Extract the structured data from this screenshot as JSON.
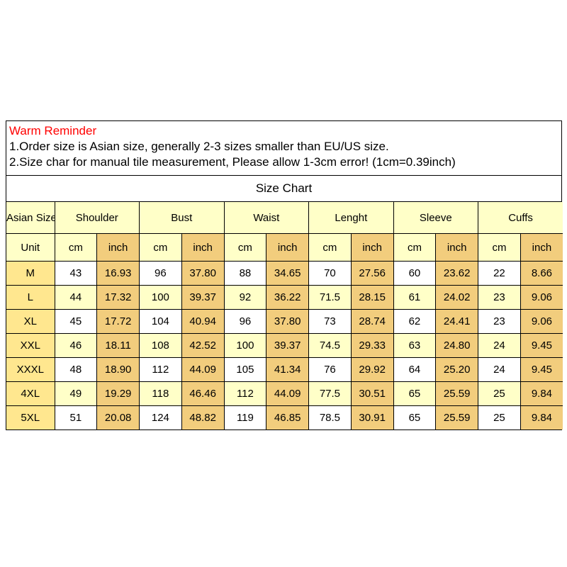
{
  "reminder": {
    "title": "Warm Reminder",
    "line1": "1.Order size is Asian size, generally 2-3 sizes smaller than EU/US size.",
    "line2": "2.Size char for manual tile measurement, Please allow 1-3cm error!  (1cm=0.39inch)"
  },
  "chart_data": {
    "type": "table",
    "title": "Size Chart",
    "first_column_header": "Asian Size",
    "unit_row_label": "Unit",
    "groups": [
      "Shoulder",
      "Bust",
      "Waist",
      "Lenght",
      "Sleeve",
      "Cuffs"
    ],
    "unit_labels": [
      "cm",
      "inch"
    ],
    "rows": [
      {
        "size": "M",
        "values": [
          "43",
          "16.93",
          "96",
          "37.80",
          "88",
          "34.65",
          "70",
          "27.56",
          "60",
          "23.62",
          "22",
          "8.66"
        ]
      },
      {
        "size": "L",
        "values": [
          "44",
          "17.32",
          "100",
          "39.37",
          "92",
          "36.22",
          "71.5",
          "28.15",
          "61",
          "24.02",
          "23",
          "9.06"
        ]
      },
      {
        "size": "XL",
        "values": [
          "45",
          "17.72",
          "104",
          "40.94",
          "96",
          "37.80",
          "73",
          "28.74",
          "62",
          "24.41",
          "23",
          "9.06"
        ]
      },
      {
        "size": "XXL",
        "values": [
          "46",
          "18.11",
          "108",
          "42.52",
          "100",
          "39.37",
          "74.5",
          "29.33",
          "63",
          "24.80",
          "24",
          "9.45"
        ]
      },
      {
        "size": "XXXL",
        "values": [
          "48",
          "18.90",
          "112",
          "44.09",
          "105",
          "41.34",
          "76",
          "29.92",
          "64",
          "25.20",
          "24",
          "9.45"
        ]
      },
      {
        "size": "4XL",
        "values": [
          "49",
          "19.29",
          "118",
          "46.46",
          "112",
          "44.09",
          "77.5",
          "30.51",
          "65",
          "25.59",
          "25",
          "9.84"
        ]
      },
      {
        "size": "5XL",
        "values": [
          "51",
          "20.08",
          "124",
          "48.82",
          "119",
          "46.85",
          "78.5",
          "30.91",
          "65",
          "25.59",
          "25",
          "9.84"
        ]
      }
    ]
  },
  "colors": {
    "reminder_title": "#ff0000",
    "header_bg": "#ffffc8",
    "gold_bg": "#f2cd7d",
    "size_col_bg": "#ffe78f",
    "alt_row_bg": "#ffffc8",
    "border": "#000000"
  }
}
